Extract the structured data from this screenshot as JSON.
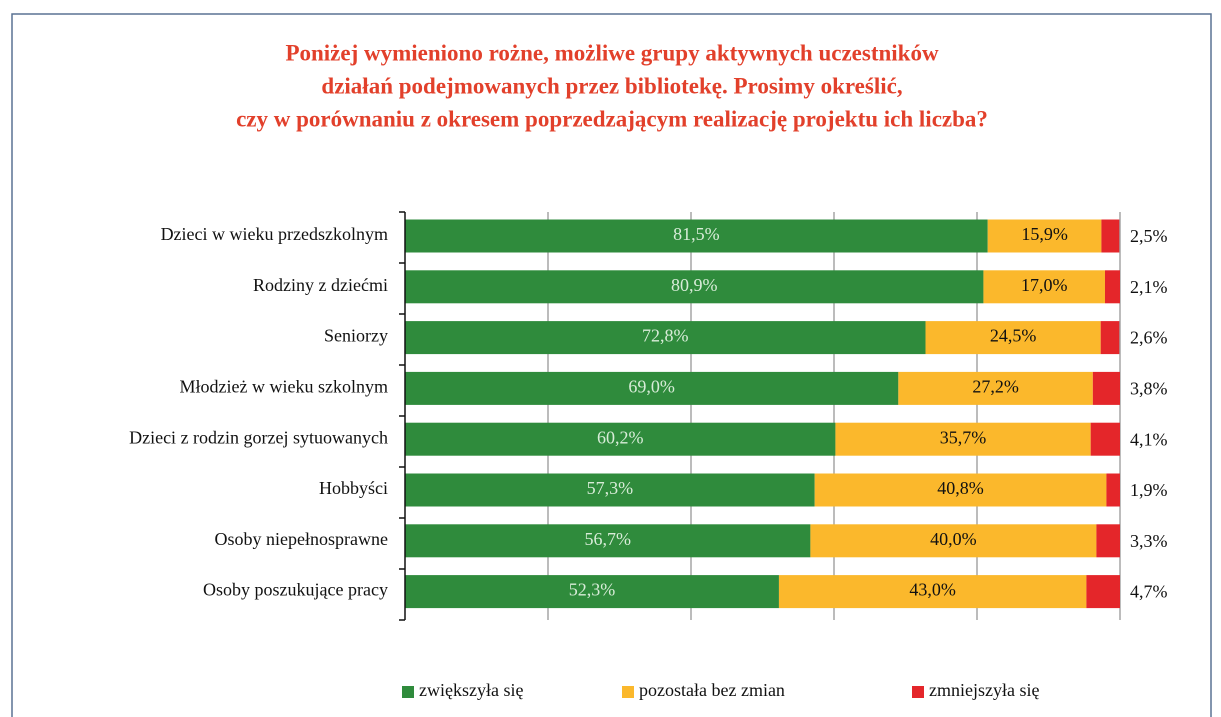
{
  "chart_data": {
    "type": "stacked_bar_horizontal",
    "title": [
      "Poniżej wymieniono rożne, możliwe grupy aktywnych uczestników",
      "działań podejmowanych przez bibliotekę. Prosimy określić,",
      "czy w porównaniu z okresem poprzedzającym realizację projektu ich liczba?"
    ],
    "categories": [
      "Dzieci w wieku przedszkolnym",
      "Rodziny z dziećmi",
      "Seniorzy",
      "Młodzież w wieku szkolnym",
      "Dzieci z rodzin gorzej sytuowanych",
      "Hobbyści",
      "Osoby niepełnosprawne",
      "Osoby poszukujące pracy"
    ],
    "series": [
      {
        "name": "zwiększyła się",
        "color": "#2f8b3c",
        "values": [
          81.5,
          80.9,
          72.8,
          69.0,
          60.2,
          57.3,
          56.7,
          52.3
        ],
        "value_labels": [
          "81,5%",
          "80,9%",
          "72,8%",
          "69,0%",
          "60,2%",
          "57,3%",
          "56,7%",
          "52,3%"
        ]
      },
      {
        "name": "pozostała bez zmian",
        "color": "#fbb82c",
        "values": [
          15.9,
          17.0,
          24.5,
          27.2,
          35.7,
          40.8,
          40.0,
          43.0
        ],
        "value_labels": [
          "15,9%",
          "17,0%",
          "24,5%",
          "27,2%",
          "35,7%",
          "40,8%",
          "40,0%",
          "43,0%"
        ]
      },
      {
        "name": "zmniejszyła się",
        "color": "#e4262a",
        "values": [
          2.5,
          2.1,
          2.6,
          3.8,
          4.1,
          1.9,
          3.3,
          4.7
        ],
        "value_labels": [
          "2,5%",
          "2,1%",
          "2,6%",
          "3,8%",
          "4,1%",
          "1,9%",
          "3,3%",
          "4,7%"
        ]
      }
    ],
    "xlim": [
      0,
      100
    ],
    "xticks": [
      0,
      20,
      40,
      60,
      80,
      100
    ],
    "grid": true,
    "legend": "bottom"
  }
}
